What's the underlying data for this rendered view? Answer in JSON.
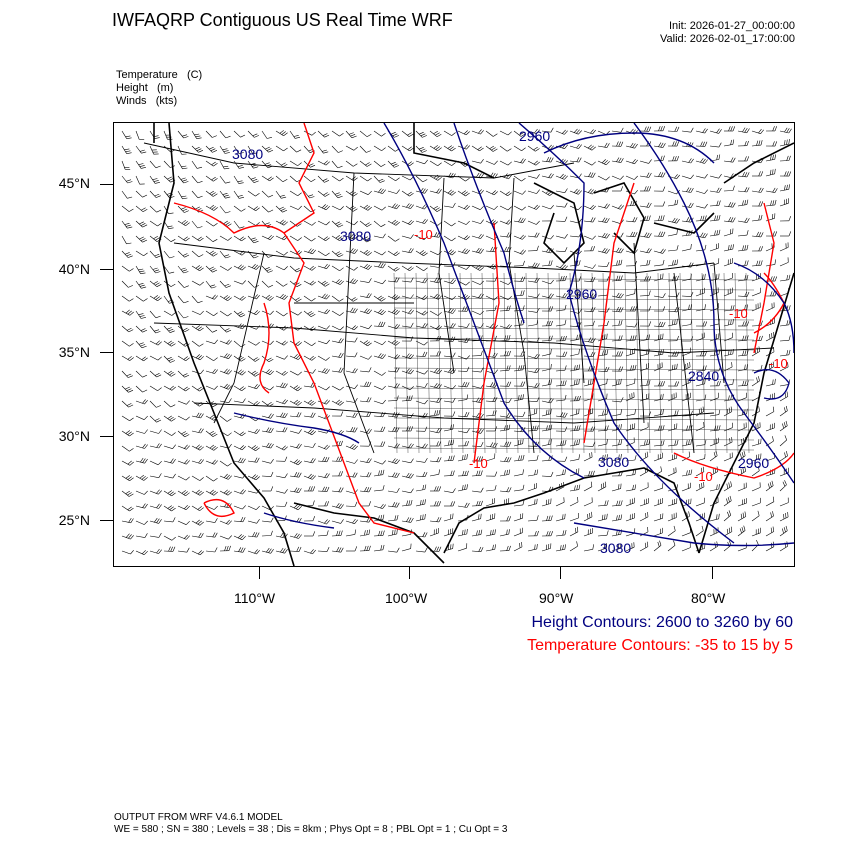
{
  "title": "IWFAQRP Contiguous US Real Time WRF",
  "init": "Init: 2026-01-27_00:00:00",
  "valid": "Valid: 2026-02-01_17:00:00",
  "fields": [
    {
      "name": "Temperature",
      "unit": "(C)"
    },
    {
      "name": "Height",
      "unit": "(m)"
    },
    {
      "name": "Winds",
      "unit": "(kts)"
    }
  ],
  "lat_labels": [
    "45°N",
    "40°N",
    "35°N",
    "30°N",
    "25°N"
  ],
  "lon_labels": [
    "110°W",
    "100°W",
    "90°W",
    "80°W"
  ],
  "height_contour_labels": [
    "2960",
    "3080",
    "3080",
    "2960",
    "2840",
    "3080",
    "2960",
    "3080"
  ],
  "temp_contour_labels": [
    "-10",
    "-10",
    "-10",
    "-10",
    "-10"
  ],
  "legend": {
    "height": "Height Contours: 2600 to 3260 by 60",
    "temperature": "Temperature Contours: -35 to 15 by 5"
  },
  "footer": {
    "line1": "OUTPUT FROM WRF V4.6.1 MODEL",
    "line2": "WE = 580 ; SN = 380 ; Levels = 38 ; Dis = 8km ; Phys Opt = 8 ; PBL Opt = 1 ; Cu Opt = 3"
  },
  "colors": {
    "height": "#000080",
    "temperature": "#ff0000",
    "map": "#000000"
  }
}
